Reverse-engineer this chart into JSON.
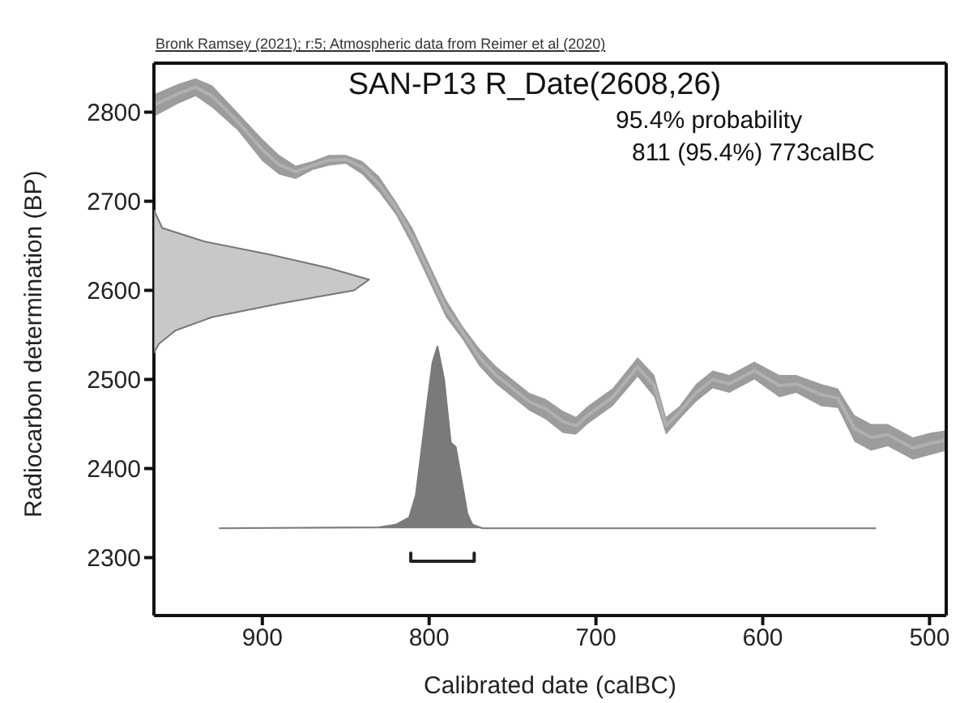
{
  "chart_data": {
    "type": "area",
    "title": "SAN-P13 R_Date(2608,26)",
    "xlabel": "Calibrated date (calBC)",
    "ylabel": "Radiocarbon determination (BP)",
    "annotations": [
      "Bronk Ramsey (2021); r:5; Atmospheric data from Reimer et al (2020)",
      "95.4% probability",
      "811 (95.4%) 773calBC"
    ],
    "xlim": [
      965,
      490
    ],
    "ylim": [
      2235,
      2855
    ],
    "xticks": [
      900,
      800,
      700,
      600,
      500
    ],
    "yticks": [
      2300,
      2400,
      2500,
      2600,
      2700,
      2800
    ],
    "grid": false,
    "legend": false,
    "series": [
      {
        "type": "line",
        "color": "#b0b0b0",
        "x": [
          965,
          950,
          940,
          930,
          915,
          900,
          890,
          880,
          870,
          860,
          850,
          840,
          830,
          820,
          810,
          800,
          790,
          780,
          770,
          760,
          750,
          740,
          730,
          720,
          712,
          705,
          690,
          675,
          665,
          658,
          650,
          640,
          630,
          620,
          605,
          590,
          580,
          565,
          555,
          545,
          535,
          525,
          510,
          500,
          490
        ],
        "values": [
          2808,
          2821,
          2828,
          2818,
          2790,
          2758,
          2741,
          2733,
          2740,
          2746,
          2747,
          2738,
          2719,
          2693,
          2660,
          2620,
          2580,
          2553,
          2525,
          2505,
          2490,
          2475,
          2467,
          2453,
          2448,
          2460,
          2480,
          2514,
          2493,
          2448,
          2463,
          2485,
          2500,
          2495,
          2510,
          2493,
          2495,
          2483,
          2479,
          2445,
          2435,
          2438,
          2423,
          2428,
          2432
        ],
        "upper": [
          2820,
          2832,
          2838,
          2830,
          2800,
          2770,
          2752,
          2740,
          2745,
          2752,
          2752,
          2745,
          2728,
          2700,
          2670,
          2630,
          2590,
          2560,
          2535,
          2515,
          2500,
          2485,
          2478,
          2465,
          2458,
          2470,
          2490,
          2525,
          2505,
          2458,
          2470,
          2495,
          2510,
          2505,
          2520,
          2505,
          2505,
          2495,
          2490,
          2460,
          2450,
          2450,
          2435,
          2440,
          2443
        ],
        "lower": [
          2795,
          2810,
          2818,
          2805,
          2780,
          2745,
          2730,
          2725,
          2735,
          2740,
          2742,
          2730,
          2710,
          2685,
          2650,
          2610,
          2570,
          2545,
          2515,
          2495,
          2480,
          2465,
          2455,
          2440,
          2438,
          2450,
          2470,
          2503,
          2480,
          2438,
          2455,
          2475,
          2490,
          2485,
          2500,
          2480,
          2485,
          2470,
          2468,
          2430,
          2420,
          2425,
          2410,
          2415,
          2420
        ]
      },
      {
        "color": "#c8c8c8",
        "x": [
          965,
          962,
          952,
          930,
          890,
          845,
          836,
          860,
          895,
          935,
          960,
          965
        ],
        "values": [
          2530,
          2540,
          2555,
          2570,
          2585,
          2600,
          2612,
          2625,
          2640,
          2655,
          2670,
          2690
        ]
      },
      {
        "color": "#7a7a7a",
        "x": [
          926,
          830,
          820,
          812,
          808,
          804,
          801,
          798,
          795,
          791,
          787,
          784,
          781,
          777,
          774,
          768,
          532
        ],
        "values": [
          2333,
          2334,
          2337,
          2345,
          2370,
          2430,
          2476,
          2519,
          2537,
          2500,
          2429,
          2424,
          2392,
          2349,
          2337,
          2333,
          2333
        ]
      },
      {
        "type": "line",
        "color": "#222222",
        "x": [
          811,
          811,
          773,
          773
        ],
        "values": [
          2305,
          2296,
          2296,
          2305
        ]
      }
    ]
  }
}
